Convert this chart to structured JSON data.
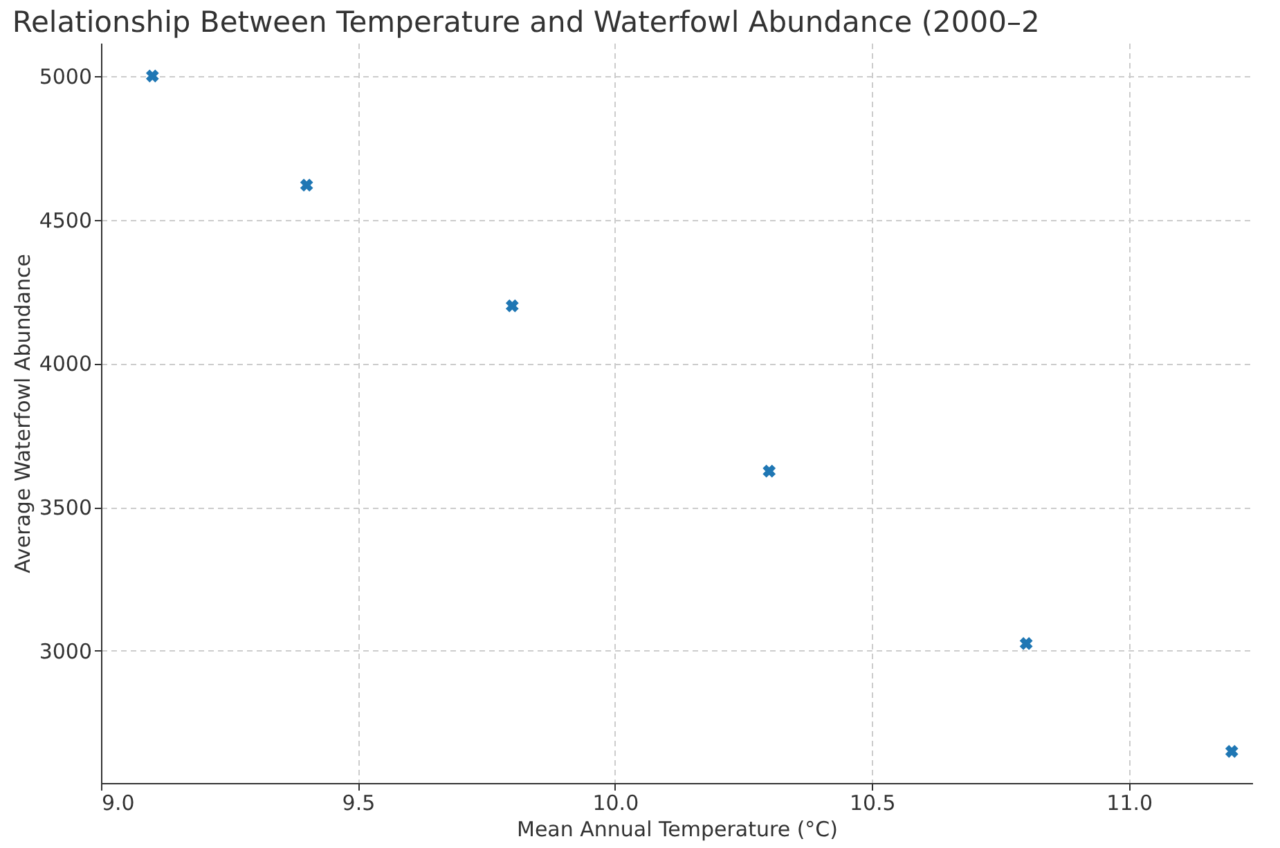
{
  "chart_data": {
    "type": "scatter",
    "title": "Relationship Between Temperature and Waterfowl Abundance (2000–2",
    "xlabel": "Mean Annual Temperature (°C)",
    "ylabel": "Average Waterfowl Abundance",
    "x": [
      9.1,
      9.4,
      9.8,
      10.3,
      10.8,
      11.2
    ],
    "series": [
      {
        "color": "#1f77b4",
        "values": [
          5000,
          4620,
          4200,
          3625,
          3025,
          2650
        ]
      }
    ],
    "xlim": [
      9.0,
      11.24
    ],
    "xticks": [
      {
        "value": 9.0,
        "label": "9.0"
      },
      {
        "value": 9.5,
        "label": "9.5"
      },
      {
        "value": 10.0,
        "label": "10.0"
      },
      {
        "value": 10.5,
        "label": "10.5"
      },
      {
        "value": 11.0,
        "label": "11.0"
      }
    ],
    "ylim": [
      2540,
      5115
    ],
    "yticks": [
      3000,
      3500,
      4000,
      4500,
      5000
    ],
    "grid": true,
    "marker": "cross"
  }
}
